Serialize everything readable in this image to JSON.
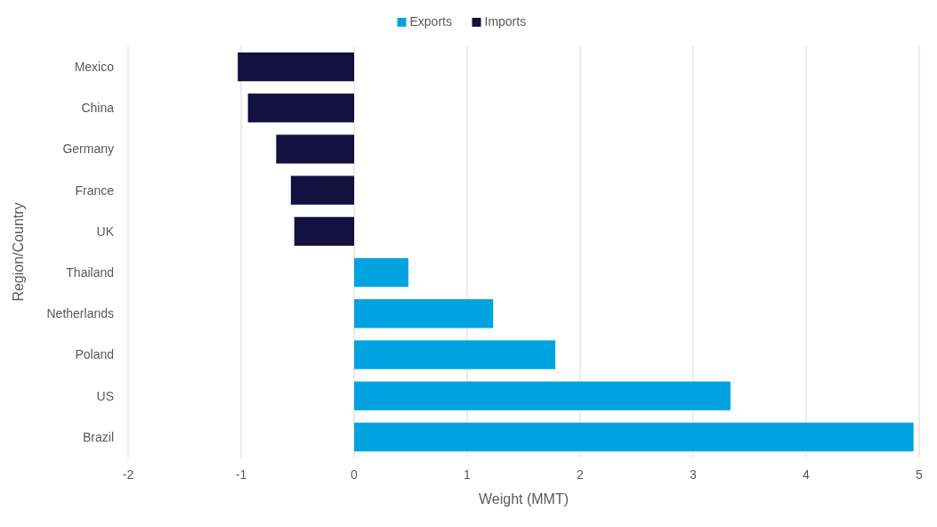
{
  "chart_data": {
    "type": "bar",
    "orientation": "horizontal",
    "xlabel": "Weight (MMT)",
    "ylabel": "Region/Country",
    "categories": [
      "Mexico",
      "China",
      "Germany",
      "France",
      "UK",
      "Thailand",
      "Netherlands",
      "Poland",
      "US",
      "Brazil"
    ],
    "series": [
      {
        "name": "Exports",
        "color": "#00a3e0",
        "values": [
          null,
          null,
          null,
          null,
          null,
          0.48,
          1.23,
          1.78,
          3.33,
          4.95
        ]
      },
      {
        "name": "Imports",
        "color": "#14103f",
        "values": [
          -1.03,
          -0.94,
          -0.69,
          -0.56,
          -0.53,
          null,
          null,
          null,
          null,
          null
        ]
      }
    ],
    "xlim": [
      -2,
      5
    ],
    "xticks": [
      -2,
      -1,
      0,
      1,
      2,
      3,
      4,
      5
    ],
    "grid": "x",
    "legend": "top"
  }
}
